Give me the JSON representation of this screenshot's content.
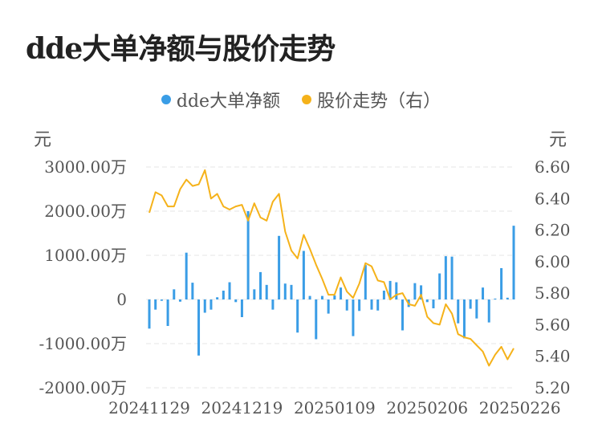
{
  "title": "dde大单净额与股价走势",
  "legend": [
    {
      "label": "dde大单净额",
      "color": "#3a9de6"
    },
    {
      "label": "股价走势（右）",
      "color": "#f5b21a"
    }
  ],
  "left_unit": "元",
  "right_unit": "元",
  "chart_data": {
    "type": "bar+line",
    "title": "dde大单净额与股价走势",
    "y_left": {
      "ticks": [
        "3000.00万",
        "2000.00万",
        "1000.00万",
        "0",
        "-1000.00万",
        "-2000.00万"
      ],
      "range": [
        -2000,
        3000
      ]
    },
    "y_right": {
      "ticks": [
        "6.60",
        "6.40",
        "6.20",
        "6.00",
        "5.80",
        "5.60",
        "5.40",
        "5.20"
      ],
      "range": [
        5.2,
        6.6
      ]
    },
    "x_ticks": [
      "20241129",
      "20241219",
      "20250109",
      "20250206",
      "20250226"
    ],
    "x_tick_index": [
      0,
      15,
      30,
      45,
      60
    ],
    "series": [
      {
        "name": "dde大单净额",
        "kind": "bar",
        "values": [
          -660,
          -230,
          -30,
          -600,
          230,
          -50,
          1060,
          380,
          -1270,
          -300,
          -230,
          50,
          200,
          390,
          -60,
          -400,
          2000,
          230,
          620,
          330,
          -230,
          1440,
          360,
          330,
          -750,
          1100,
          80,
          -900,
          80,
          -320,
          90,
          270,
          -250,
          -830,
          -260,
          780,
          -230,
          -250,
          200,
          420,
          390,
          -700,
          -170,
          370,
          320,
          -60,
          -200,
          590,
          980,
          970,
          -540,
          -880,
          -210,
          -430,
          270,
          -520,
          20,
          710,
          40,
          1670
        ]
      },
      {
        "name": "股价走势（右）",
        "kind": "line",
        "values": [
          6.31,
          6.44,
          6.42,
          6.35,
          6.35,
          6.46,
          6.52,
          6.48,
          6.49,
          6.58,
          6.4,
          6.43,
          6.35,
          6.33,
          6.35,
          6.36,
          6.26,
          6.37,
          6.28,
          6.26,
          6.38,
          6.43,
          6.19,
          6.07,
          6.02,
          6.17,
          6.08,
          5.98,
          5.89,
          5.79,
          5.79,
          5.9,
          5.81,
          5.77,
          5.86,
          5.99,
          5.97,
          5.88,
          5.87,
          5.76,
          5.79,
          5.8,
          5.73,
          5.72,
          5.79,
          5.65,
          5.61,
          5.6,
          5.73,
          5.67,
          5.54,
          5.52,
          5.51,
          5.47,
          5.43,
          5.34,
          5.41,
          5.46,
          5.38,
          5.45
        ]
      }
    ]
  }
}
